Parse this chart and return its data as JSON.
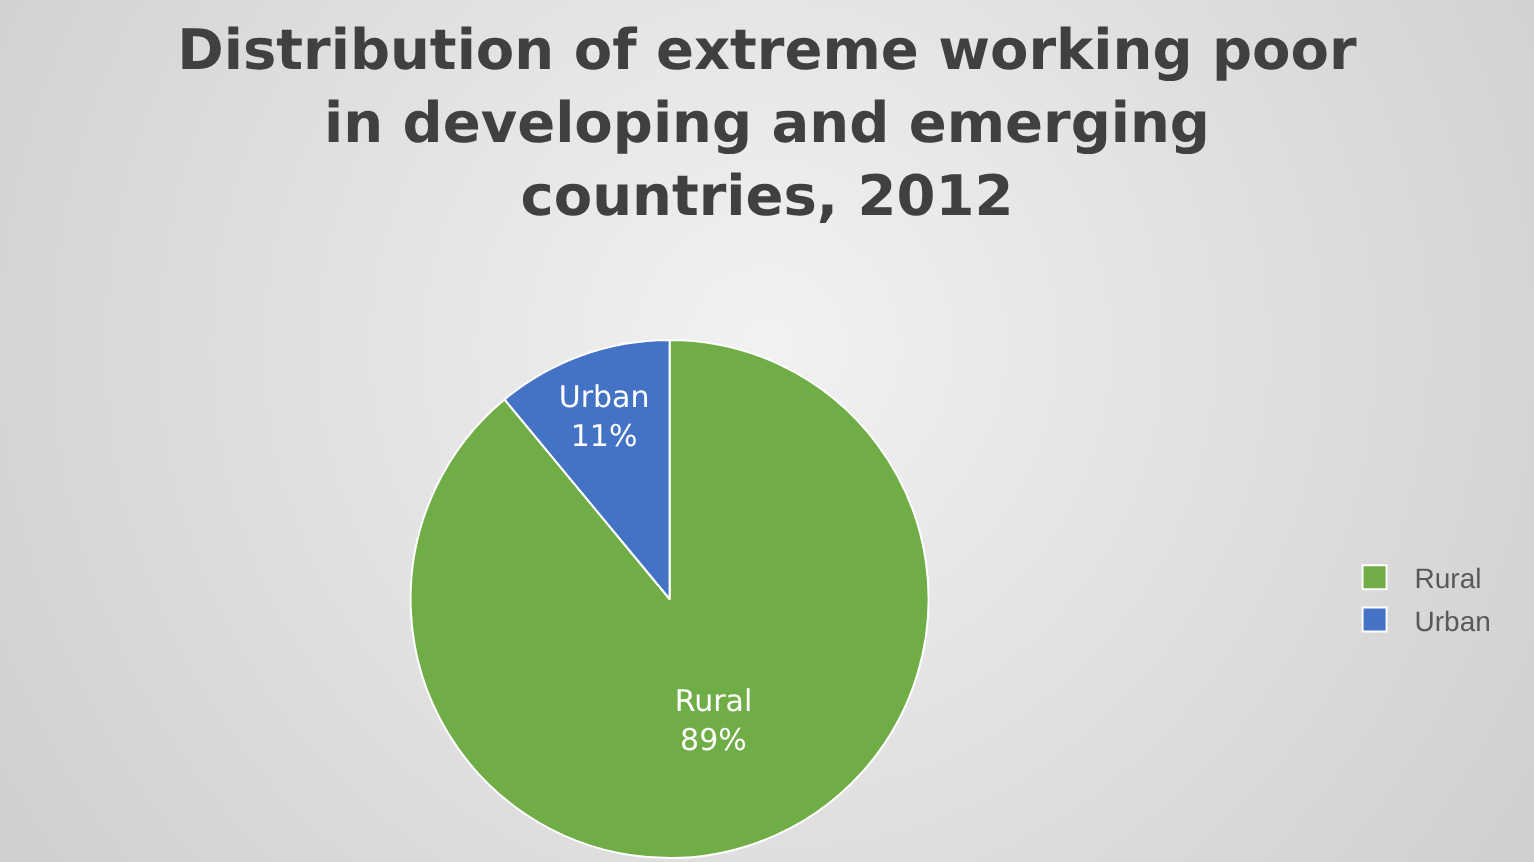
{
  "chart_data": {
    "type": "pie",
    "title": "Distribution of extreme working poor in developing and emerging countries, 2012",
    "categories": [
      "Rural",
      "Urban"
    ],
    "values": [
      89,
      11
    ],
    "colors": [
      "#70ad47",
      "#4472c4"
    ],
    "value_labels": [
      "89%",
      "11%"
    ],
    "legend": "right"
  }
}
